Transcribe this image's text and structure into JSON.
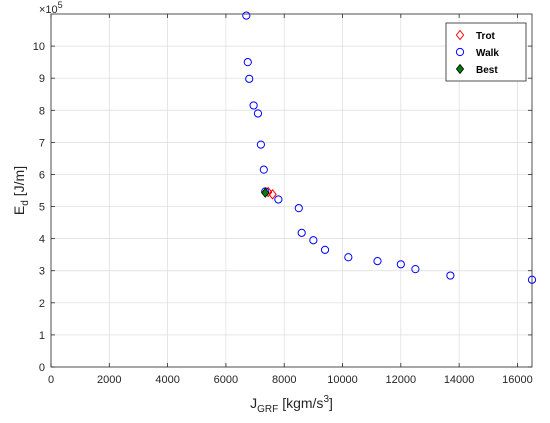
{
  "chart_data": {
    "type": "scatter",
    "title": "",
    "xlabel": {
      "main": "J",
      "sub": "GRF",
      "unit": "[kgm/s",
      "unit_sup": "3",
      "unit_end": "]"
    },
    "ylabel": {
      "main": "E",
      "sub": "d",
      "unit": "[J/m]"
    },
    "y_exponent": {
      "base": "×10",
      "power": "5"
    },
    "xlim": [
      0,
      16500
    ],
    "ylim": [
      0,
      11
    ],
    "xticks": [
      0,
      2000,
      4000,
      6000,
      8000,
      10000,
      12000,
      14000,
      16000
    ],
    "yticks": [
      0,
      1,
      2,
      3,
      4,
      5,
      6,
      7,
      8,
      9,
      10
    ],
    "grid": true,
    "legend_position": "top-right",
    "series": [
      {
        "name": "Trot",
        "marker": "diamond-open",
        "color": "#ff0000",
        "points": [
          [
            7450,
            5.45
          ],
          [
            7600,
            5.38
          ]
        ]
      },
      {
        "name": "Walk",
        "marker": "circle-open",
        "color": "#0000ff",
        "points": [
          [
            6700,
            10.95
          ],
          [
            6750,
            9.5
          ],
          [
            6800,
            8.98
          ],
          [
            6950,
            8.15
          ],
          [
            7100,
            7.9
          ],
          [
            7200,
            6.93
          ],
          [
            7300,
            6.15
          ],
          [
            7350,
            5.47
          ],
          [
            7800,
            5.22
          ],
          [
            8500,
            4.95
          ],
          [
            8600,
            4.18
          ],
          [
            9000,
            3.95
          ],
          [
            9400,
            3.65
          ],
          [
            10200,
            3.42
          ],
          [
            11200,
            3.3
          ],
          [
            12000,
            3.2
          ],
          [
            12500,
            3.05
          ],
          [
            13700,
            2.85
          ],
          [
            16500,
            2.72
          ]
        ]
      },
      {
        "name": "Best",
        "marker": "diamond-filled",
        "color": "#008000",
        "points": [
          [
            7350,
            5.43
          ]
        ]
      }
    ]
  }
}
